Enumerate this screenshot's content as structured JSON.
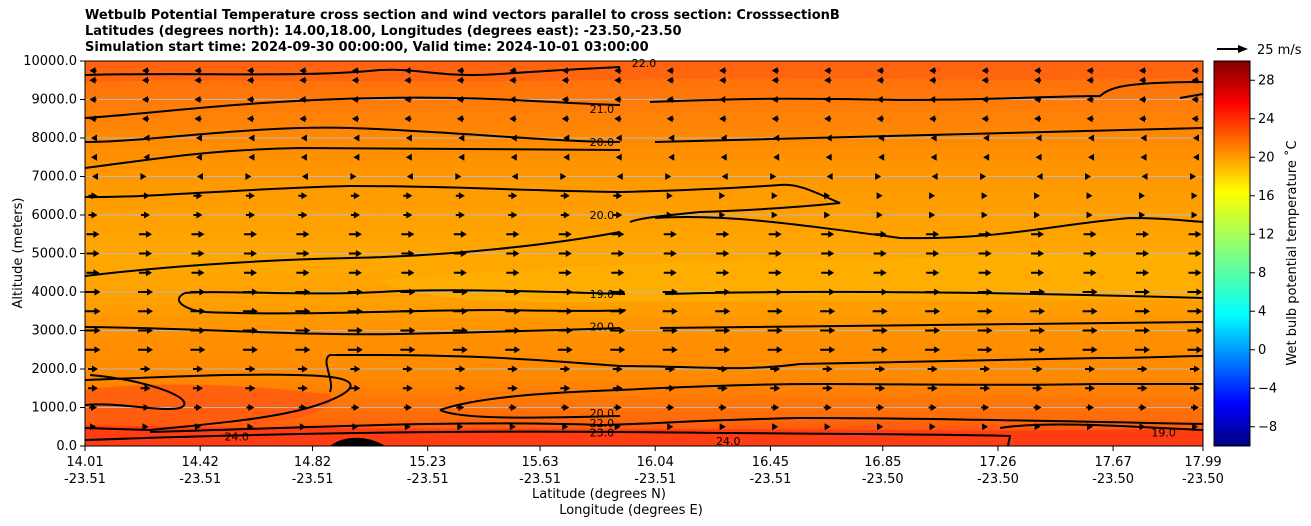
{
  "title_lines": [
    "Wetbulb Potential Temperature cross section and wind vectors parallel to cross section: CrosssectionB",
    "Latitudes (degrees north): 14.00,18.00, Longitudes (degrees east): -23.50,-23.50",
    "Simulation start time: 2024-09-30 00:00:00, Valid time: 2024-10-01 03:00:00"
  ],
  "chart_data": {
    "type": "heatmap",
    "subtype": "filled contour cross-section with contour lines and wind vectors",
    "xlabel_lines": [
      "Latitude (degrees N)",
      "Longitude (degrees E)"
    ],
    "ylabel": "Altitude (meters)",
    "ylim": [
      0,
      10000
    ],
    "y_ticks": [
      "0.0",
      "1000.0",
      "2000.0",
      "3000.0",
      "4000.0",
      "5000.0",
      "6000.0",
      "7000.0",
      "8000.0",
      "9000.0",
      "10000.0"
    ],
    "x_ticks": [
      {
        "lat": "14.01",
        "lon": "-23.51"
      },
      {
        "lat": "14.42",
        "lon": "-23.51"
      },
      {
        "lat": "14.82",
        "lon": "-23.51"
      },
      {
        "lat": "15.23",
        "lon": "-23.51"
      },
      {
        "lat": "15.63",
        "lon": "-23.51"
      },
      {
        "lat": "16.04",
        "lon": "-23.51"
      },
      {
        "lat": "16.45",
        "lon": "-23.51"
      },
      {
        "lat": "16.85",
        "lon": "-23.50"
      },
      {
        "lat": "17.26",
        "lon": "-23.50"
      },
      {
        "lat": "17.67",
        "lon": "-23.50"
      },
      {
        "lat": "17.99",
        "lon": "-23.50"
      }
    ],
    "grid": "horizontal",
    "colorbar": {
      "label": "Wet bulb potential temperature ˚C",
      "range": [
        -10,
        30
      ],
      "ticks": [
        "-8",
        "-4",
        "0",
        "4",
        "8",
        "12",
        "16",
        "20",
        "24",
        "28"
      ],
      "colormap": "jet"
    },
    "quiver_key": "25 m/s",
    "contour_labels": [
      {
        "text": "22.0",
        "x": 16.0,
        "y": 9900
      },
      {
        "text": "21.0",
        "x": 15.85,
        "y": 8700
      },
      {
        "text": "20.0",
        "x": 15.85,
        "y": 7850
      },
      {
        "text": "20.0",
        "x": 15.85,
        "y": 5950
      },
      {
        "text": "19.0",
        "x": 15.85,
        "y": 3900
      },
      {
        "text": "20.0",
        "x": 15.85,
        "y": 3050
      },
      {
        "text": "20.0",
        "x": 15.85,
        "y": 800
      },
      {
        "text": "22.0",
        "x": 15.85,
        "y": 550
      },
      {
        "text": "23.0",
        "x": 15.85,
        "y": 300
      },
      {
        "text": "24.0",
        "x": 14.55,
        "y": 200
      },
      {
        "text": "24.0",
        "x": 16.3,
        "y": 80
      },
      {
        "text": "19.0",
        "x": 17.85,
        "y": 300
      }
    ],
    "colors": {
      "background_field": "#ff8c00",
      "warm_band": "#ff5a10",
      "cool_band": "#ffb000"
    }
  }
}
